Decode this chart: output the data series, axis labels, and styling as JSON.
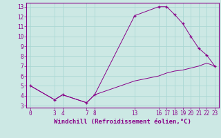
{
  "xlabel": "Windchill (Refroidissement éolien,°C)",
  "background_color": "#cce8e4",
  "grid_color": "#aad8d4",
  "line_color": "#880088",
  "marker": "+",
  "x_upper": [
    0,
    3,
    4,
    7,
    8,
    13,
    16,
    17,
    18,
    19,
    20,
    21,
    22,
    23
  ],
  "y_upper": [
    5.0,
    3.6,
    4.1,
    3.3,
    4.1,
    12.1,
    13.0,
    13.0,
    12.2,
    11.3,
    10.0,
    8.8,
    8.1,
    7.0
  ],
  "x_lower": [
    0,
    3,
    4,
    7,
    8,
    13,
    16,
    17,
    18,
    19,
    20,
    21,
    22,
    23
  ],
  "y_lower": [
    5.0,
    3.6,
    4.1,
    3.3,
    4.1,
    5.5,
    6.0,
    6.3,
    6.5,
    6.6,
    6.8,
    7.0,
    7.3,
    7.0
  ],
  "xlim": [
    -0.5,
    23.5
  ],
  "ylim": [
    2.8,
    13.4
  ],
  "xticks": [
    0,
    3,
    4,
    7,
    8,
    13,
    16,
    17,
    18,
    19,
    20,
    21,
    22,
    23
  ],
  "yticks": [
    3,
    4,
    5,
    6,
    7,
    8,
    9,
    10,
    11,
    12,
    13
  ],
  "tick_fontsize": 5.5,
  "xlabel_fontsize": 6.5,
  "linewidth": 0.7,
  "markersize": 3.5,
  "markeredgewidth": 0.9
}
